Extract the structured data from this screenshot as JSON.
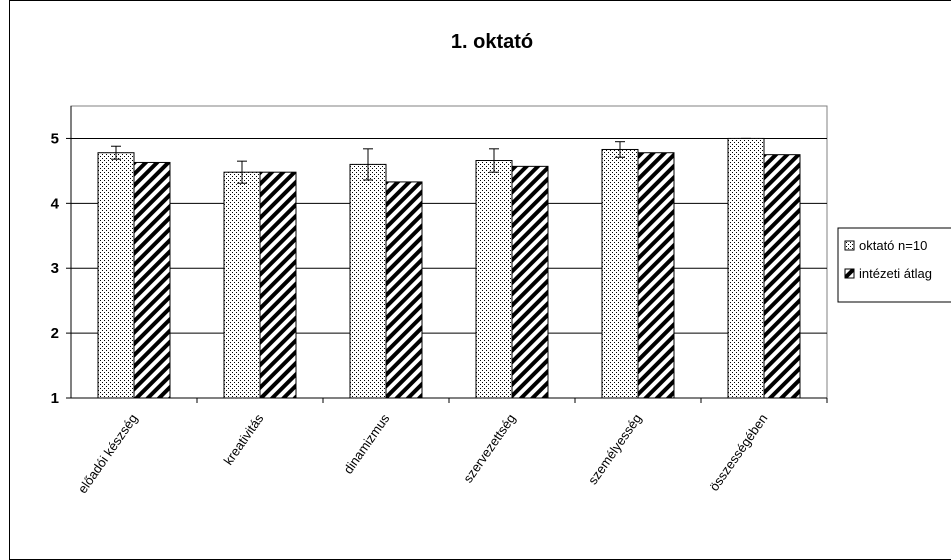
{
  "chart_data": {
    "type": "bar",
    "title": "1. oktató",
    "xlabel": "",
    "ylabel": "",
    "ylim": [
      1,
      5.5
    ],
    "yticks": [
      "1",
      "2",
      "3",
      "4",
      "5"
    ],
    "grid": true,
    "legend_position": "right",
    "categories": [
      "előadói készség",
      "kreativitás",
      "dinamizmus",
      "szervezettség",
      "személyesség",
      "összességében"
    ],
    "series": [
      {
        "name": "oktató n=10",
        "values": [
          4.78,
          4.48,
          4.6,
          4.66,
          4.83,
          5.0
        ],
        "error": [
          0.1,
          0.17,
          0.24,
          0.18,
          0.12,
          0.0
        ],
        "pattern": "dots"
      },
      {
        "name": "intézeti átlag",
        "values": [
          4.63,
          4.48,
          4.33,
          4.57,
          4.78,
          4.75
        ],
        "pattern": "stripes"
      }
    ]
  }
}
